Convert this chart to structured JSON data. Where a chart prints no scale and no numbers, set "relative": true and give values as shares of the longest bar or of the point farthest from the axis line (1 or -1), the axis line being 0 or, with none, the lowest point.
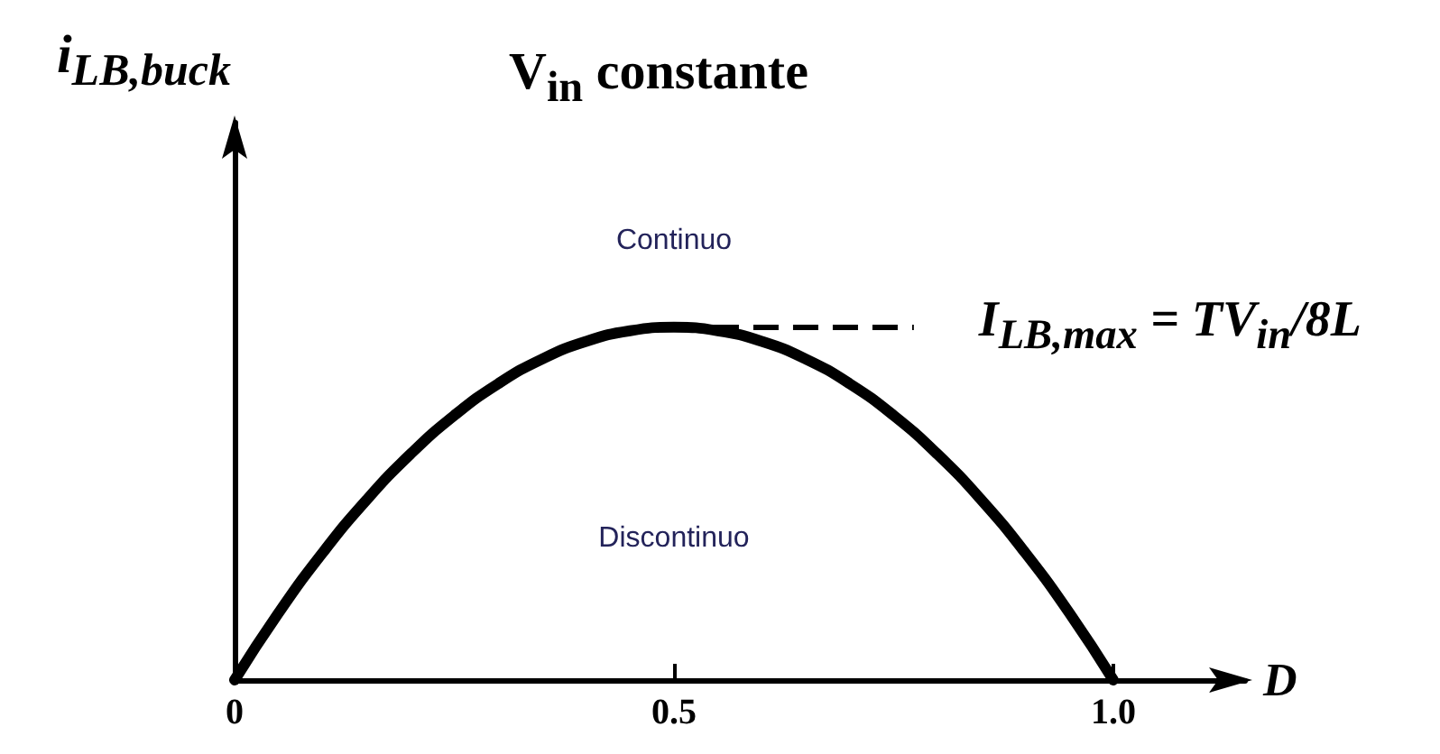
{
  "chart_data": {
    "type": "line",
    "title": "V$_{in}$ constante",
    "xlabel": "D",
    "ylabel": "i$_{LB,buck}$",
    "annotations": [
      "Continuo",
      "Discontinuo"
    ],
    "x": [
      0,
      0.05,
      0.1,
      0.15,
      0.2,
      0.25,
      0.3,
      0.35,
      0.4,
      0.45,
      0.5,
      0.55,
      0.6,
      0.65,
      0.7,
      0.75,
      0.8,
      0.85,
      0.9,
      0.95,
      1
    ],
    "values": [
      0,
      0.19,
      0.36,
      0.51,
      0.64,
      0.75,
      0.84,
      0.91,
      0.96,
      0.99,
      1,
      0.99,
      0.96,
      0.91,
      0.84,
      0.75,
      0.64,
      0.51,
      0.36,
      0.19,
      0
    ],
    "color": "#000000",
    "relative": true,
    "xlim": [
      0,
      1.15
    ],
    "xticks": [
      0,
      0.5,
      {
        "value": 1,
        "label": "1.0"
      }
    ],
    "ref_lines": [
      {
        "axis": "y",
        "value": 1,
        "label": "I$_{LB,max}$ = TV$_{in}$/8L",
        "line_style": "dashed",
        "color": "#000000"
      }
    ],
    "marker": "none",
    "line_style": "solid"
  }
}
